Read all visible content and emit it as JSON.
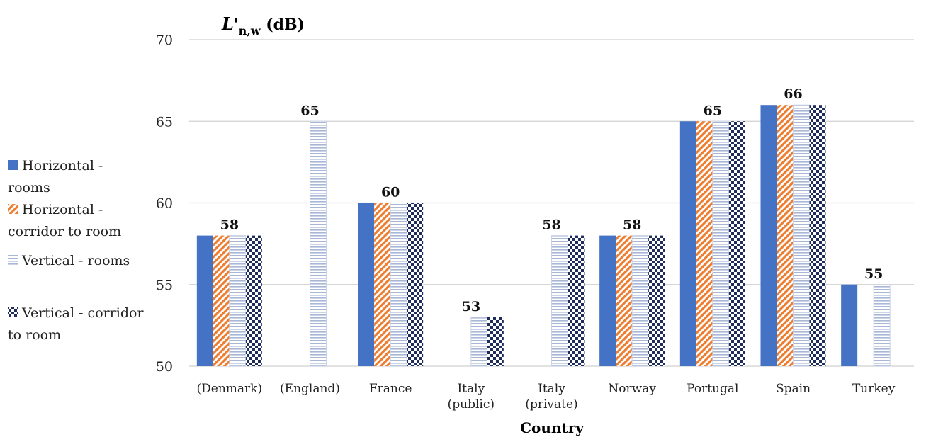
{
  "chart_data": {
    "type": "bar",
    "ylabel": {
      "main": "L",
      "prime": "'",
      "sub": "n,w",
      "unit": " (dB)"
    },
    "xlabel": "Country",
    "ylim": [
      50,
      70
    ],
    "yticks": [
      50,
      55,
      60,
      65,
      70
    ],
    "grid": true,
    "legend_position": "left",
    "categories": [
      [
        "(Denmark)"
      ],
      [
        "(England)"
      ],
      [
        "France"
      ],
      [
        "Italy",
        "(public)"
      ],
      [
        "Italy",
        "(private)"
      ],
      [
        "Norway"
      ],
      [
        "Portugal"
      ],
      [
        "Spain"
      ],
      [
        "Turkey"
      ]
    ],
    "series": [
      {
        "name": [
          "Horizontal -",
          "rooms"
        ],
        "pattern": "solid",
        "color": "#4472C4",
        "values": [
          58,
          null,
          60,
          null,
          null,
          58,
          65,
          66,
          55
        ]
      },
      {
        "name": [
          "Horizontal -",
          "corridor to room"
        ],
        "pattern": "diagonal",
        "color": "#ED7D31",
        "values": [
          58,
          null,
          60,
          null,
          null,
          58,
          65,
          66,
          null
        ]
      },
      {
        "name": [
          "Vertical - rooms"
        ],
        "pattern": "horizontal",
        "color": "#A9B7D6",
        "values": [
          58,
          65,
          60,
          53,
          58,
          58,
          65,
          66,
          55
        ]
      },
      {
        "name": [
          "Vertical - corridor",
          "to room"
        ],
        "pattern": "checker",
        "color": "#1F2D5C",
        "values": [
          58,
          null,
          60,
          53,
          58,
          58,
          65,
          66,
          null
        ]
      }
    ],
    "data_labels": [
      "58",
      "65",
      "60",
      "53",
      "58",
      "58",
      "65",
      "66",
      "55"
    ]
  }
}
